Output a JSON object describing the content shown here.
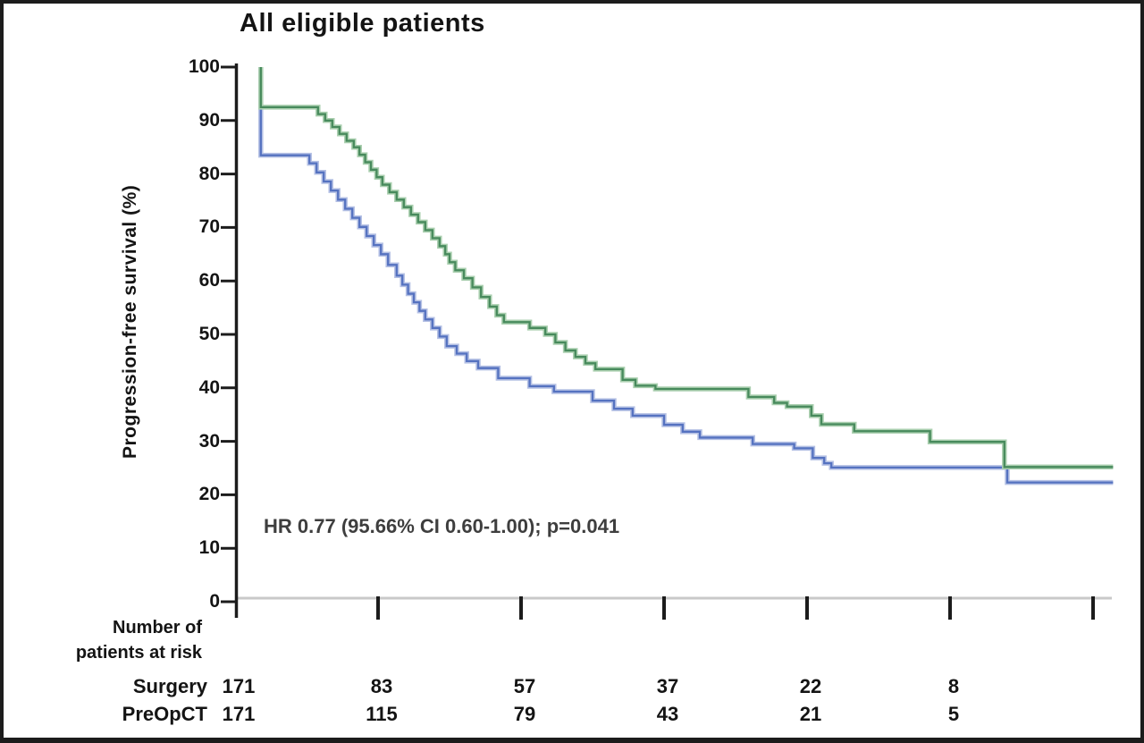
{
  "title": "All eligible patients",
  "ylabel": "Progression-free survival (%)",
  "annotation": "HR 0.77 (95.66% CI 0.60-1.00); p=0.041",
  "at_risk": {
    "header_line1": "Number of",
    "header_line2": "patients at risk",
    "rows": [
      {
        "label": "Surgery",
        "values": [
          171,
          83,
          57,
          37,
          22,
          8
        ]
      },
      {
        "label": "PreOpCT",
        "values": [
          171,
          115,
          79,
          43,
          21,
          5
        ]
      }
    ]
  },
  "colors": {
    "green_core": "#478a5c",
    "green_halo": "#aacfaf",
    "blue_core": "#5572c0",
    "blue_halo": "#b4c0e4",
    "axis_gray": "#c9c9c9",
    "axis_black": "#1c1c1c"
  },
  "chart_data": {
    "type": "line",
    "subtype": "kaplan-meier-step",
    "title": "All eligible patients",
    "xlabel": "",
    "ylabel": "Progression-free survival (%)",
    "ylim": [
      0,
      100
    ],
    "yticks": [
      0,
      10,
      20,
      30,
      40,
      50,
      60,
      70,
      80,
      90,
      100
    ],
    "x_axis": {
      "major_ticks_t": [
        1,
        2,
        3,
        4,
        5,
        6
      ],
      "tick_labels_shown": false,
      "at_risk_columns_t": [
        0,
        1,
        2,
        3,
        4,
        5
      ]
    },
    "grid": false,
    "legend": "none (identified via number-at-risk rows)",
    "annotation": "HR 0.77 (95.66% CI 0.60-1.00); p=0.041",
    "series": [
      {
        "name": "PreOpCT",
        "color": "#478a5c",
        "halo": "#aacfaf",
        "steps": [
          [
            0.18,
            100
          ],
          [
            0.18,
            92.5
          ],
          [
            0.56,
            92.5
          ],
          [
            0.58,
            91.2
          ],
          [
            0.63,
            90
          ],
          [
            0.68,
            88.8
          ],
          [
            0.73,
            87.5
          ],
          [
            0.78,
            86.2
          ],
          [
            0.83,
            85
          ],
          [
            0.87,
            83.6
          ],
          [
            0.91,
            82.2
          ],
          [
            0.95,
            80.8
          ],
          [
            0.99,
            79.4
          ],
          [
            1.03,
            78
          ],
          [
            1.08,
            76.6
          ],
          [
            1.13,
            75.2
          ],
          [
            1.18,
            73.8
          ],
          [
            1.23,
            72.4
          ],
          [
            1.28,
            71
          ],
          [
            1.33,
            69.5
          ],
          [
            1.38,
            68
          ],
          [
            1.43,
            66.5
          ],
          [
            1.47,
            65
          ],
          [
            1.5,
            63.5
          ],
          [
            1.54,
            62
          ],
          [
            1.6,
            60.5
          ],
          [
            1.66,
            58.8
          ],
          [
            1.72,
            57
          ],
          [
            1.78,
            55.2
          ],
          [
            1.83,
            53.6
          ],
          [
            1.88,
            52.3
          ],
          [
            2.06,
            51.2
          ],
          [
            2.17,
            50
          ],
          [
            2.24,
            48.5
          ],
          [
            2.31,
            47
          ],
          [
            2.38,
            45.8
          ],
          [
            2.45,
            44.6
          ],
          [
            2.52,
            43.5
          ],
          [
            2.71,
            41.5
          ],
          [
            2.8,
            40.4
          ],
          [
            2.94,
            39.8
          ],
          [
            3.59,
            38.3
          ],
          [
            3.77,
            37.2
          ],
          [
            3.86,
            36.5
          ],
          [
            4.03,
            34.8
          ],
          [
            4.1,
            33.2
          ],
          [
            4.33,
            31.9
          ],
          [
            4.86,
            29.9
          ],
          [
            5.38,
            25.2
          ],
          [
            6.14,
            25.2
          ]
        ]
      },
      {
        "name": "Surgery",
        "color": "#5572c0",
        "halo": "#b4c0e4",
        "steps": [
          [
            0.18,
            100
          ],
          [
            0.18,
            83.5
          ],
          [
            0.48,
            83.5
          ],
          [
            0.52,
            82
          ],
          [
            0.57,
            80.3
          ],
          [
            0.62,
            78.6
          ],
          [
            0.67,
            76.9
          ],
          [
            0.72,
            75.2
          ],
          [
            0.77,
            73.5
          ],
          [
            0.82,
            71.8
          ],
          [
            0.87,
            70.1
          ],
          [
            0.92,
            68.4
          ],
          [
            0.97,
            66.7
          ],
          [
            1.02,
            65
          ],
          [
            1.07,
            63
          ],
          [
            1.13,
            61
          ],
          [
            1.17,
            59.3
          ],
          [
            1.21,
            57.6
          ],
          [
            1.25,
            56
          ],
          [
            1.29,
            54.4
          ],
          [
            1.33,
            52.8
          ],
          [
            1.38,
            51.2
          ],
          [
            1.43,
            49.6
          ],
          [
            1.48,
            47.8
          ],
          [
            1.55,
            46.4
          ],
          [
            1.62,
            45
          ],
          [
            1.7,
            43.7
          ],
          [
            1.84,
            41.8
          ],
          [
            2.06,
            40.3
          ],
          [
            2.23,
            39.3
          ],
          [
            2.5,
            37.6
          ],
          [
            2.65,
            36.1
          ],
          [
            2.78,
            34.8
          ],
          [
            3,
            33.1
          ],
          [
            3.13,
            31.8
          ],
          [
            3.25,
            30.7
          ],
          [
            3.62,
            29.5
          ],
          [
            3.91,
            28.7
          ],
          [
            4.04,
            26.9
          ],
          [
            4.12,
            25.9
          ],
          [
            4.17,
            25.1
          ],
          [
            5.4,
            22.3
          ],
          [
            6.14,
            22.3
          ]
        ]
      }
    ]
  }
}
